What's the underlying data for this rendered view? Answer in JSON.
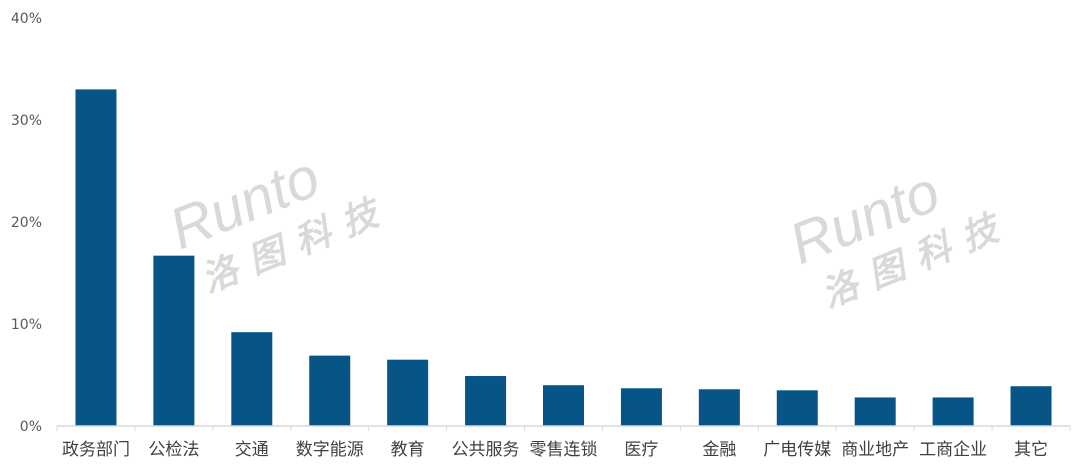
{
  "chart_data": {
    "type": "bar",
    "title": "",
    "xlabel": "",
    "ylabel": "",
    "categories": [
      "政务部门",
      "公检法",
      "交通",
      "数字能源",
      "教育",
      "公共服务",
      "零售连锁",
      "医疗",
      "金融",
      "广电传媒",
      "商业地产",
      "工商企业",
      "其它"
    ],
    "values": [
      33.0,
      16.7,
      9.2,
      6.9,
      6.5,
      4.9,
      4.0,
      3.7,
      3.6,
      3.5,
      2.8,
      2.8,
      3.9
    ],
    "unit": "%",
    "ylim": [
      0,
      40
    ],
    "yticks": [
      "0%",
      "10%",
      "20%",
      "30%",
      "40%"
    ],
    "grid": false,
    "bar_color": "#075586"
  },
  "watermark": {
    "latin": "Runto",
    "chinese": "洛图科技"
  }
}
